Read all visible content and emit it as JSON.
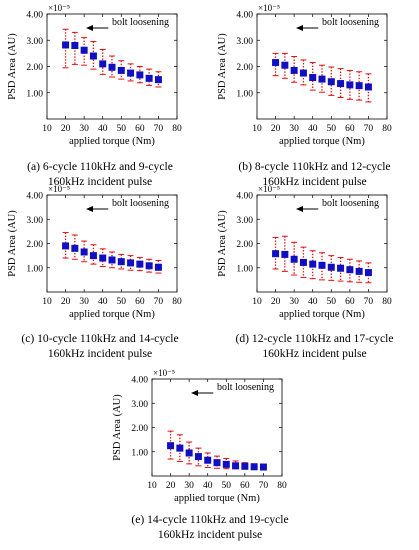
{
  "chart_data": [
    {
      "type": "scatter",
      "title": "",
      "caption": "(a) 6-cycle 110kHz and 9-cycle\n160kHz incident pulse",
      "xlabel": "applied torque (Nm)",
      "ylabel": "PSD Area (AU)",
      "exponent_label": "×10⁻⁵",
      "annotation": "bolt loosening",
      "xlim": [
        10,
        80
      ],
      "ylim": [
        0,
        4
      ],
      "xticks": [
        "10",
        "20",
        "30",
        "40",
        "50",
        "60",
        "70",
        "80"
      ],
      "yticks": [
        "1.00",
        "2.00",
        "3.00",
        "4.00"
      ],
      "x": [
        20,
        25,
        30,
        35,
        40,
        45,
        50,
        55,
        60,
        65,
        70
      ],
      "series": [
        {
          "values": [
            2.82,
            2.8,
            2.62,
            2.4,
            2.1,
            1.97,
            1.85,
            1.75,
            1.68,
            1.55,
            1.5
          ],
          "err_low": [
            1.95,
            2.08,
            2.05,
            1.9,
            1.7,
            1.6,
            1.52,
            1.45,
            1.38,
            1.28,
            1.22
          ],
          "err_high": [
            3.42,
            3.3,
            3.1,
            2.95,
            2.65,
            2.4,
            2.22,
            2.1,
            2.0,
            1.9,
            1.8
          ]
        }
      ],
      "marker_color": "#1010c0",
      "errorbar_color": "#e01010"
    },
    {
      "type": "scatter",
      "title": "",
      "caption": "(b) 8-cycle 110kHz and 12-cycle\n160kHz incident pulse",
      "xlabel": "applied torque (Nm)",
      "ylabel": "PSD Area (AU)",
      "exponent_label": "×10⁻⁵",
      "annotation": "bolt loosening",
      "xlim": [
        10,
        80
      ],
      "ylim": [
        0,
        4
      ],
      "xticks": [
        "10",
        "20",
        "30",
        "40",
        "50",
        "60",
        "70",
        "80"
      ],
      "yticks": [
        "1.00",
        "2.00",
        "3.00",
        "4.00"
      ],
      "x": [
        20,
        25,
        30,
        35,
        40,
        45,
        50,
        55,
        60,
        65,
        70
      ],
      "series": [
        {
          "values": [
            2.15,
            2.05,
            1.85,
            1.75,
            1.58,
            1.52,
            1.42,
            1.35,
            1.3,
            1.27,
            1.22
          ],
          "err_low": [
            1.65,
            1.55,
            1.4,
            1.3,
            1.1,
            1.02,
            0.9,
            0.82,
            0.75,
            0.72,
            0.65
          ],
          "err_high": [
            2.5,
            2.5,
            2.38,
            2.25,
            2.15,
            2.05,
            1.98,
            1.92,
            1.85,
            1.8,
            1.72
          ]
        }
      ],
      "marker_color": "#1010c0",
      "errorbar_color": "#e01010"
    },
    {
      "type": "scatter",
      "title": "",
      "caption": "(c) 10-cycle 110kHz and 14-cycle\n160kHz incident pulse",
      "xlabel": "applied torque (Nm)",
      "ylabel": "PSD Area (AU)",
      "exponent_label": "×10⁻⁵",
      "annotation": "bolt loosening",
      "xlim": [
        10,
        80
      ],
      "ylim": [
        0,
        4
      ],
      "xticks": [
        "10",
        "20",
        "30",
        "40",
        "50",
        "60",
        "70",
        "80"
      ],
      "yticks": [
        "1.00",
        "2.00",
        "3.00",
        "4.00"
      ],
      "x": [
        20,
        25,
        30,
        35,
        40,
        45,
        50,
        55,
        60,
        65,
        70
      ],
      "series": [
        {
          "values": [
            1.9,
            1.8,
            1.65,
            1.5,
            1.4,
            1.32,
            1.25,
            1.2,
            1.15,
            1.08,
            1.02
          ],
          "err_low": [
            1.4,
            1.35,
            1.25,
            1.15,
            1.05,
            1.0,
            0.95,
            0.9,
            0.88,
            0.82,
            0.78
          ],
          "err_high": [
            2.45,
            2.35,
            2.1,
            1.95,
            1.78,
            1.65,
            1.55,
            1.5,
            1.42,
            1.35,
            1.3
          ]
        }
      ],
      "marker_color": "#1010c0",
      "errorbar_color": "#e01010"
    },
    {
      "type": "scatter",
      "title": "",
      "caption": "(d) 12-cycle 110kHz and 17-cycle\n160kHz incident pulse",
      "xlabel": "applied torque (Nm)",
      "ylabel": "PSD Area (AU)",
      "exponent_label": "×10⁻⁵",
      "annotation": "bolt loosening",
      "xlim": [
        10,
        80
      ],
      "ylim": [
        0,
        4
      ],
      "xticks": [
        "10",
        "20",
        "30",
        "40",
        "50",
        "60",
        "70",
        "80"
      ],
      "yticks": [
        "1.00",
        "2.00",
        "3.00",
        "4.00"
      ],
      "x": [
        20,
        25,
        30,
        35,
        40,
        45,
        50,
        55,
        60,
        65,
        70
      ],
      "series": [
        {
          "values": [
            1.58,
            1.55,
            1.35,
            1.22,
            1.15,
            1.1,
            1.02,
            0.98,
            0.92,
            0.85,
            0.8
          ],
          "err_low": [
            0.95,
            0.85,
            0.7,
            0.6,
            0.55,
            0.5,
            0.48,
            0.45,
            0.42,
            0.4,
            0.38
          ],
          "err_high": [
            2.25,
            2.3,
            2.05,
            1.85,
            1.7,
            1.62,
            1.5,
            1.42,
            1.35,
            1.28,
            1.2
          ]
        }
      ],
      "marker_color": "#1010c0",
      "errorbar_color": "#e01010"
    },
    {
      "type": "scatter",
      "title": "",
      "caption": "(e) 14-cycle 110kHz and 19-cycle\n160kHz incident pulse",
      "xlabel": "applied torque (Nm)",
      "ylabel": "PSD Area (AU)",
      "exponent_label": "×10⁻⁵",
      "annotation": "bolt loosening",
      "xlim": [
        10,
        80
      ],
      "ylim": [
        0,
        4
      ],
      "xticks": [
        "10",
        "20",
        "30",
        "40",
        "50",
        "60",
        "70",
        "80"
      ],
      "yticks": [
        "1.00",
        "2.00",
        "3.00",
        "4.00"
      ],
      "x": [
        20,
        25,
        30,
        35,
        40,
        45,
        50,
        55,
        60,
        65,
        70
      ],
      "series": [
        {
          "values": [
            1.25,
            1.15,
            0.95,
            0.8,
            0.65,
            0.55,
            0.48,
            0.42,
            0.4,
            0.38,
            0.37
          ],
          "err_low": [
            0.7,
            0.6,
            0.5,
            0.42,
            0.35,
            0.32,
            0.3,
            0.3,
            0.3,
            0.3,
            0.3
          ],
          "err_high": [
            1.85,
            1.7,
            1.4,
            1.15,
            0.95,
            0.82,
            0.72,
            0.62,
            0.55,
            0.5,
            0.46
          ]
        }
      ],
      "marker_color": "#1010c0",
      "errorbar_color": "#e01010"
    }
  ]
}
